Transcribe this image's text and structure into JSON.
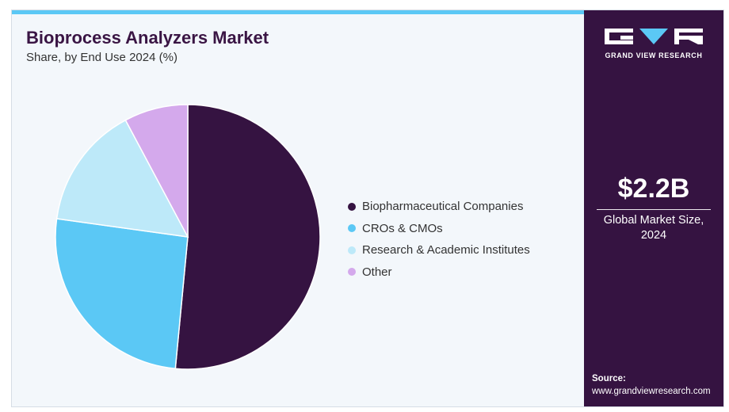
{
  "header": {
    "title": "Bioprocess Analyzers Market",
    "subtitle": "Share, by End Use 2024 (%)"
  },
  "brand": {
    "name": "GRAND VIEW RESEARCH"
  },
  "kpi": {
    "value": "$2.2B",
    "label_line1": "Global Market Size,",
    "label_line2": "2024"
  },
  "source": {
    "label": "Source:",
    "url": "www.grandviewresearch.com"
  },
  "colors": {
    "accent_bar": "#5bc8f5",
    "sidebar": "#351341",
    "title": "#3a1544"
  },
  "chart_data": {
    "type": "pie",
    "title": "Bioprocess Analyzers Market",
    "subtitle": "Share, by End Use 2024 (%)",
    "categories": [
      "Biopharmaceutical Companies",
      "CROs & CMOs",
      "Research & Academic Institutes",
      "Other"
    ],
    "values": [
      51.5,
      25.7,
      15.0,
      7.8
    ],
    "colors": [
      "#351341",
      "#5bc8f5",
      "#bde9f9",
      "#d4a9ec"
    ],
    "legend_position": "right"
  }
}
